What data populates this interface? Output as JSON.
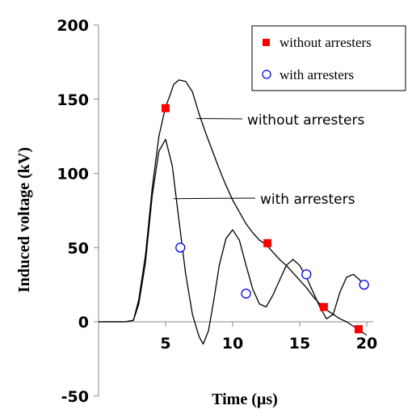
{
  "chart_data": {
    "type": "line",
    "xlabel": "Time (µs)",
    "ylabel": "Induced voltage (kV)",
    "xlim": [
      0,
      20.5
    ],
    "ylim": [
      -50,
      200
    ],
    "x_ticks": [
      5,
      10,
      15,
      20
    ],
    "y_ticks": [
      200,
      150,
      100,
      50,
      0,
      -50
    ],
    "grid": false,
    "legend_position": "top-right",
    "legend": [
      {
        "label": "without arresters",
        "marker": "filled-square",
        "color": "#ff0000"
      },
      {
        "label": "with arresters",
        "marker": "open-circle",
        "color": "#0000ff"
      }
    ],
    "annotations": [
      {
        "text": "without arresters",
        "points_to": {
          "x": 7.3,
          "y": 137
        }
      },
      {
        "text": "with arresters",
        "points_to": {
          "x": 5.6,
          "y": 83
        }
      }
    ],
    "series": [
      {
        "name": "without arresters",
        "color": "#000000",
        "x": [
          0,
          1,
          2,
          2.6,
          3,
          3.5,
          4,
          4.5,
          5,
          5.3,
          5.6,
          6,
          6.5,
          7,
          7.5,
          8,
          8.5,
          9,
          9.5,
          10,
          10.5,
          11,
          11.5,
          12,
          12.5,
          13,
          13.5,
          14,
          14.5,
          15,
          15.5,
          16,
          16.5,
          17,
          17.5,
          18,
          18.5,
          19,
          19.5,
          20
        ],
        "y": [
          0,
          0,
          0,
          1,
          15,
          45,
          90,
          125,
          145,
          152,
          160,
          163,
          162,
          155,
          140,
          127,
          115,
          103,
          92,
          82,
          74,
          66,
          60,
          55,
          52,
          47,
          42,
          38,
          33,
          28,
          23,
          17,
          12,
          8,
          5,
          2,
          0,
          -3,
          -6,
          -9
        ],
        "markers": {
          "shape": "filled-square",
          "color": "#ff0000",
          "x": [
            5,
            12.6,
            16.8,
            19.4
          ],
          "y": [
            144,
            53,
            10,
            -5
          ]
        }
      },
      {
        "name": "with arresters",
        "color": "#000000",
        "x": [
          0,
          1,
          2,
          2.6,
          3,
          3.5,
          4,
          4.5,
          5,
          5.5,
          6,
          6.5,
          7,
          7.5,
          7.8,
          8.2,
          8.6,
          9,
          9.5,
          10,
          10.5,
          11,
          11.5,
          12,
          12.5,
          13,
          13.5,
          14,
          14.5,
          15,
          15.5,
          16,
          16.5,
          17,
          17.5,
          18,
          18.5,
          19,
          19.5,
          20
        ],
        "y": [
          0,
          0,
          0,
          1,
          12,
          40,
          85,
          115,
          123,
          105,
          68,
          32,
          5,
          -10,
          -15,
          -6,
          15,
          38,
          56,
          62,
          55,
          38,
          22,
          12,
          10,
          18,
          28,
          38,
          42,
          38,
          30,
          20,
          10,
          2,
          5,
          20,
          30,
          32,
          28,
          22
        ],
        "markers": {
          "shape": "open-circle",
          "color": "#0000ff",
          "x": [
            6.1,
            11,
            15.5,
            19.8
          ],
          "y": [
            50,
            19,
            32,
            25
          ]
        }
      }
    ]
  }
}
